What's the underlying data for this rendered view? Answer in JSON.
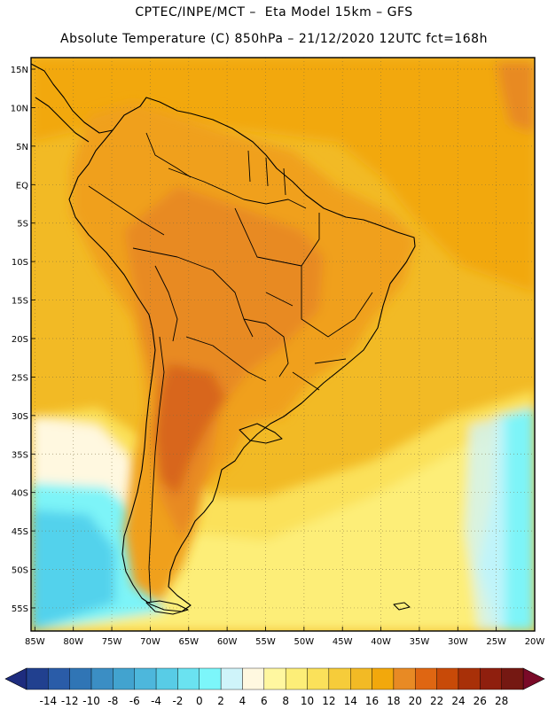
{
  "title": {
    "line1": "CPTEC/INPE/MCT –  Eta Model 15km – GFS",
    "line2": "Absolute Temperature (C) 850hPa – 21/12/2020 12UTC fct=168h"
  },
  "map": {
    "lat_labels": [
      "15N",
      "10N",
      "5N",
      "EQ",
      "5S",
      "10S",
      "15S",
      "20S",
      "25S",
      "30S",
      "35S",
      "40S",
      "45S",
      "50S",
      "55S"
    ],
    "lat_values": [
      15,
      10,
      5,
      0,
      -5,
      -10,
      -15,
      -20,
      -25,
      -30,
      -35,
      -40,
      -45,
      -50,
      -55
    ],
    "lon_labels": [
      "85W",
      "80W",
      "75W",
      "70W",
      "65W",
      "60W",
      "55W",
      "50W",
      "45W",
      "40W",
      "35W",
      "30W",
      "25W",
      "20W"
    ],
    "lon_values": [
      -85,
      -80,
      -75,
      -70,
      -65,
      -60,
      -55,
      -50,
      -45,
      -40,
      -35,
      -30,
      -25,
      -20
    ],
    "lon_range": [
      -85.5,
      -20
    ],
    "lat_range": [
      -58,
      16.5
    ],
    "region": "South America",
    "colors": {
      "ocean_base": "#f2ba25",
      "ocean_north": "#f2a80c",
      "land": "#f0a01a",
      "land_hot": "#e88a24",
      "hot_core": "#d8661e",
      "cool_south": "#fde880",
      "cold_pale": "#fff8e0",
      "cold_cyan": "#7df4f8",
      "cold_blue": "#52d2ec"
    }
  },
  "colorbar": {
    "labels": [
      "-14",
      "-12",
      "-10",
      "-8",
      "-6",
      "-4",
      "-2",
      "0",
      "2",
      "4",
      "6",
      "8",
      "10",
      "12",
      "14",
      "16",
      "18",
      "20",
      "22",
      "24",
      "26",
      "28"
    ],
    "colors": [
      "#21408f",
      "#2a5ca8",
      "#3075b5",
      "#3b8ec4",
      "#42a3cf",
      "#4db7dc",
      "#58cce6",
      "#6ae2f0",
      "#7cf6fa",
      "#cff4fa",
      "#fff8e0",
      "#fff7a0",
      "#fdee78",
      "#fbe15a",
      "#f6cc3a",
      "#f2ba25",
      "#f2a80c",
      "#e88a24",
      "#df6612",
      "#c84a08",
      "#a83008",
      "#8f1f0e",
      "#751812"
    ],
    "low_end_color": "#1e2c7e",
    "high_end_color": "#7a0a28"
  }
}
